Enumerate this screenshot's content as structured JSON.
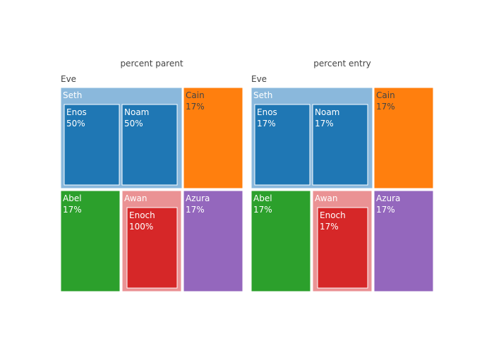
{
  "chart_data": [
    {
      "type": "treemap",
      "title": "percent parent",
      "root_label": "Eve",
      "nodes": [
        {
          "id": "seth",
          "label": "Seth",
          "parent": "Eve",
          "color": "#8ab8dc",
          "text": "",
          "children": [
            {
              "id": "enos",
              "label": "Enos",
              "color": "#1f77b4",
              "text": "50%"
            },
            {
              "id": "noam",
              "label": "Noam",
              "color": "#1f77b4",
              "text": "50%"
            }
          ]
        },
        {
          "id": "cain",
          "label": "Cain",
          "parent": "Eve",
          "color": "#ff7f0e",
          "text": "17%"
        },
        {
          "id": "abel",
          "label": "Abel",
          "parent": "Eve",
          "color": "#2ca02c",
          "text": "17%"
        },
        {
          "id": "awan",
          "label": "Awan",
          "parent": "Eve",
          "color": "#ea9294",
          "text": "",
          "children": [
            {
              "id": "enoch",
              "label": "Enoch",
              "color": "#d62728",
              "text": "100%"
            }
          ]
        },
        {
          "id": "azura",
          "label": "Azura",
          "parent": "Eve",
          "color": "#9467bd",
          "text": "17%"
        }
      ]
    },
    {
      "type": "treemap",
      "title": "percent entry",
      "root_label": "Eve",
      "nodes": [
        {
          "id": "seth",
          "label": "Seth",
          "parent": "Eve",
          "color": "#8ab8dc",
          "text": "",
          "children": [
            {
              "id": "enos",
              "label": "Enos",
              "color": "#1f77b4",
              "text": "17%"
            },
            {
              "id": "noam",
              "label": "Noam",
              "color": "#1f77b4",
              "text": "17%"
            }
          ]
        },
        {
          "id": "cain",
          "label": "Cain",
          "parent": "Eve",
          "color": "#ff7f0e",
          "text": "17%"
        },
        {
          "id": "abel",
          "label": "Abel",
          "parent": "Eve",
          "color": "#2ca02c",
          "text": "17%"
        },
        {
          "id": "awan",
          "label": "Awan",
          "parent": "Eve",
          "color": "#ea9294",
          "text": "",
          "children": [
            {
              "id": "enoch",
              "label": "Enoch",
              "color": "#d62728",
              "text": "17%"
            }
          ]
        },
        {
          "id": "azura",
          "label": "Azura",
          "parent": "Eve",
          "color": "#9467bd",
          "text": "17%"
        }
      ]
    }
  ]
}
